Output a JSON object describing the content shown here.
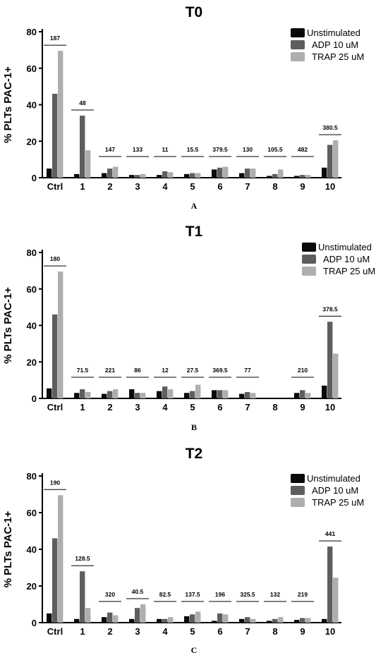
{
  "colors": {
    "unstimulated": "#0a0a0a",
    "adp": "#5e5e5e",
    "trap": "#aeaeae",
    "axis": "#000000"
  },
  "chart_data": [
    {
      "type": "bar",
      "title": "T0",
      "panel_label": "A",
      "ylabel": "% PLTs PAC-1+",
      "xlabel": "",
      "ylim": [
        0,
        80
      ],
      "yticks": [
        0,
        20,
        40,
        60,
        80
      ],
      "grid": false,
      "legend_position": "top-right",
      "categories": [
        "Ctrl",
        "1",
        "2",
        "3",
        "4",
        "5",
        "6",
        "7",
        "8",
        "9",
        "10"
      ],
      "series": [
        {
          "name": "Unstimulated",
          "values": [
            5,
            2,
            2.5,
            1.5,
            1.5,
            2,
            4.5,
            2.5,
            1,
            1,
            5.5
          ]
        },
        {
          "name": "ADP 10 uM",
          "values": [
            46,
            34,
            5,
            1.5,
            3.5,
            2.5,
            5.5,
            5,
            2,
            1.5,
            18
          ]
        },
        {
          "name": "TRAP 25 uM",
          "values": [
            69.5,
            15,
            6,
            2,
            3,
            2.5,
            6,
            5,
            4.5,
            1.5,
            20.5
          ]
        }
      ],
      "annotations": [
        "187",
        "48",
        "147",
        "133",
        "11",
        "15.5",
        "379.5",
        "130",
        "105.5",
        "482",
        "380.5"
      ]
    },
    {
      "type": "bar",
      "title": "T1",
      "panel_label": "B",
      "ylabel": "% PLTs PAC-1+",
      "xlabel": "",
      "ylim": [
        0,
        80
      ],
      "yticks": [
        0,
        20,
        40,
        60,
        80
      ],
      "grid": false,
      "legend_position": "top-right",
      "categories": [
        "Ctrl",
        "1",
        "2",
        "3",
        "4",
        "5",
        "6",
        "7",
        "8",
        "9",
        "10"
      ],
      "series": [
        {
          "name": "Unstimulated",
          "values": [
            5.5,
            3,
            2.5,
            5,
            4,
            3,
            4.5,
            2.5,
            null,
            3,
            7
          ]
        },
        {
          "name": "ADP 10 uM",
          "values": [
            46,
            5,
            4,
            3,
            6.5,
            4,
            4.5,
            3.5,
            null,
            4.5,
            42
          ]
        },
        {
          "name": "TRAP 25 uM",
          "values": [
            69.5,
            3.5,
            5,
            3,
            5,
            7.5,
            4.5,
            3,
            null,
            3,
            24.5
          ]
        }
      ],
      "annotations": [
        "180",
        "71.5",
        "221",
        "86",
        "12",
        "27.5",
        "369.5",
        "77",
        "",
        "210",
        "378.5"
      ]
    },
    {
      "type": "bar",
      "title": "T2",
      "panel_label": "C",
      "ylabel": "% PLTs PAC-1+",
      "xlabel": "",
      "ylim": [
        0,
        80
      ],
      "yticks": [
        0,
        20,
        40,
        60,
        80
      ],
      "grid": false,
      "legend_position": "top-right",
      "categories": [
        "Ctrl",
        "1",
        "2",
        "3",
        "4",
        "5",
        "6",
        "7",
        "8",
        "9",
        "10"
      ],
      "series": [
        {
          "name": "Unstimulated",
          "values": [
            5,
            2,
            3,
            2,
            2,
            3.5,
            1,
            2,
            1,
            1.5,
            2
          ]
        },
        {
          "name": "ADP 10 uM",
          "values": [
            46,
            28,
            5.5,
            8,
            2,
            4.5,
            5,
            3,
            2,
            2.5,
            41.5
          ]
        },
        {
          "name": "TRAP 25 uM",
          "values": [
            69.5,
            8,
            4,
            10,
            3,
            6,
            4.5,
            2,
            3,
            2.5,
            24.5
          ]
        }
      ],
      "annotations": [
        "190",
        "128.5",
        "320",
        "40.5",
        "82.5",
        "137.5",
        "196",
        "325.5",
        "132",
        "219",
        "441"
      ]
    }
  ]
}
